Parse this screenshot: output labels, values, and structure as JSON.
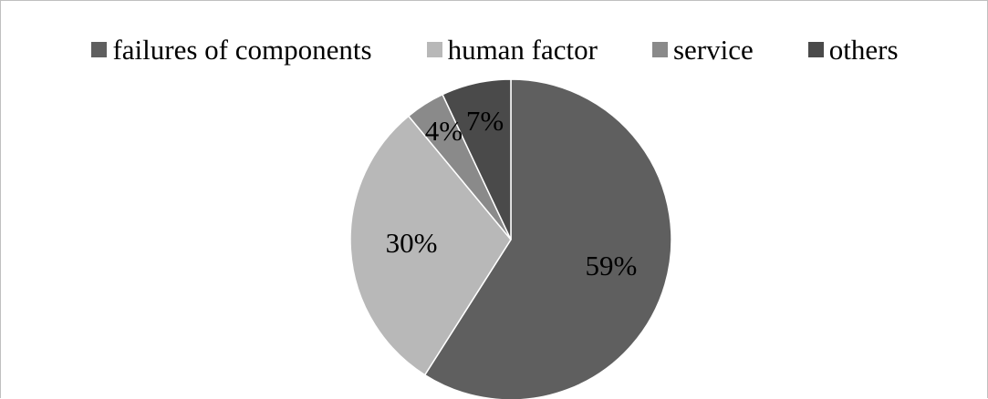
{
  "chart_data": {
    "type": "pie",
    "categories": [
      "failures of components",
      "human factor",
      "service",
      "others"
    ],
    "values": [
      59,
      30,
      4,
      7
    ],
    "labels": [
      "59%",
      "30%",
      "4%",
      "7%"
    ],
    "colors": [
      "#5f5f5f",
      "#b8b8b8",
      "#8a8a8a",
      "#4a4a4a"
    ],
    "legend_position": "top"
  }
}
